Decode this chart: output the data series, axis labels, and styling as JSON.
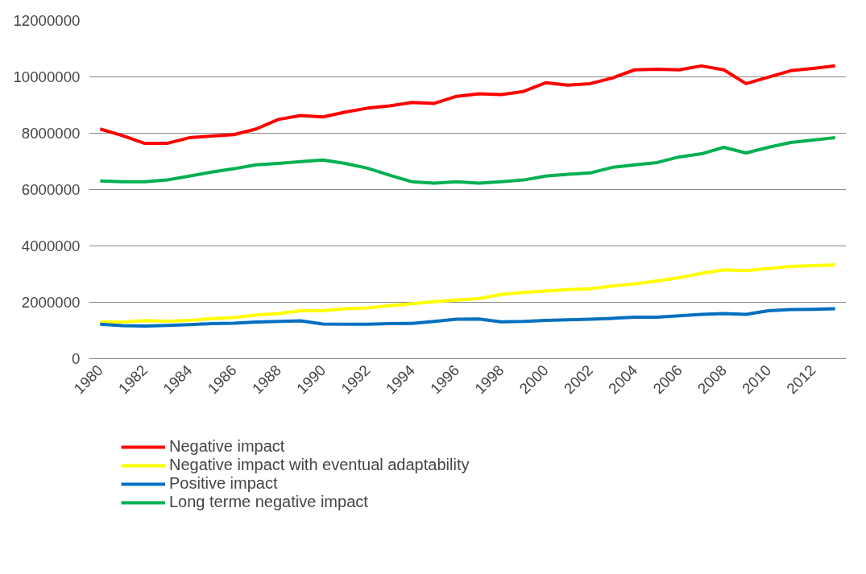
{
  "chart_data": {
    "type": "line",
    "x": [
      1980,
      1981,
      1982,
      1983,
      1984,
      1985,
      1986,
      1987,
      1988,
      1989,
      1990,
      1991,
      1992,
      1993,
      1994,
      1995,
      1996,
      1997,
      1998,
      1999,
      2000,
      2001,
      2002,
      2003,
      2004,
      2005,
      2006,
      2007,
      2008,
      2009,
      2010,
      2011,
      2012,
      2013
    ],
    "xlim": [
      1979.5,
      2013.5
    ],
    "xticks": [
      1980,
      1982,
      1984,
      1986,
      1988,
      1990,
      1992,
      1994,
      1996,
      1998,
      2000,
      2002,
      2004,
      2006,
      2008,
      2010,
      2012
    ],
    "ylim": [
      0,
      12000000
    ],
    "yticks": [
      0,
      2000000,
      4000000,
      6000000,
      8000000,
      10000000,
      12000000
    ],
    "grid": "y",
    "legend": "bottom",
    "marker": "none",
    "line_style": "solid",
    "series": [
      {
        "name": "Negative impact",
        "color": "#ff0000",
        "values": [
          8150000,
          7920000,
          7640000,
          7640000,
          7840000,
          7900000,
          7950000,
          8150000,
          8490000,
          8630000,
          8580000,
          8750000,
          8890000,
          8970000,
          9090000,
          9060000,
          9310000,
          9400000,
          9370000,
          9480000,
          9790000,
          9710000,
          9760000,
          9960000,
          10250000,
          10270000,
          10250000,
          10390000,
          10250000,
          9760000,
          9990000,
          10220000,
          10300000,
          10390000
        ]
      },
      {
        "name": "Negative impact with eventual adaptability",
        "color": "#ffff00",
        "values": [
          1300000,
          1300000,
          1350000,
          1330000,
          1360000,
          1420000,
          1460000,
          1550000,
          1600000,
          1700000,
          1700000,
          1770000,
          1800000,
          1880000,
          1950000,
          2020000,
          2080000,
          2130000,
          2280000,
          2350000,
          2400000,
          2450000,
          2480000,
          2580000,
          2650000,
          2760000,
          2870000,
          3030000,
          3150000,
          3120000,
          3200000,
          3270000,
          3300000,
          3330000
        ]
      },
      {
        "name": "Positive impact",
        "color": "#0070c0",
        "values": [
          1220000,
          1170000,
          1160000,
          1180000,
          1210000,
          1240000,
          1260000,
          1300000,
          1320000,
          1340000,
          1230000,
          1220000,
          1220000,
          1240000,
          1250000,
          1320000,
          1400000,
          1410000,
          1310000,
          1320000,
          1360000,
          1380000,
          1400000,
          1430000,
          1470000,
          1470000,
          1520000,
          1570000,
          1600000,
          1570000,
          1700000,
          1740000,
          1750000,
          1770000
        ]
      },
      {
        "name": "Long terme negative impact",
        "color": "#00b050",
        "values": [
          6310000,
          6280000,
          6280000,
          6340000,
          6480000,
          6620000,
          6740000,
          6880000,
          6930000,
          6990000,
          7050000,
          6930000,
          6760000,
          6510000,
          6280000,
          6230000,
          6280000,
          6230000,
          6280000,
          6340000,
          6480000,
          6540000,
          6590000,
          6790000,
          6880000,
          6960000,
          7160000,
          7270000,
          7500000,
          7300000,
          7500000,
          7670000,
          7760000,
          7840000
        ]
      }
    ]
  }
}
